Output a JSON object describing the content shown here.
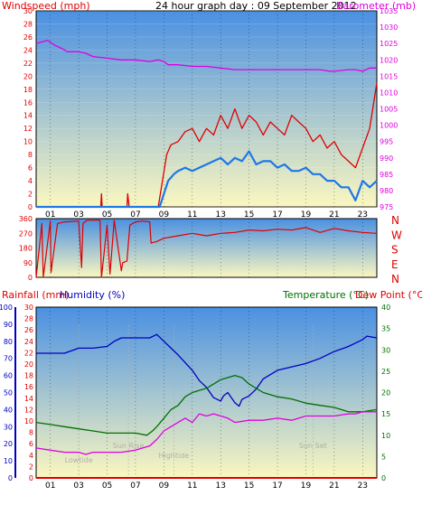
{
  "colors": {
    "red": "#e00000",
    "magenta": "#e000e0",
    "blue": "#1e78e6",
    "navy": "#0000c0",
    "green": "#007000",
    "pink": "#e060e0",
    "annot": "#b0b0a8",
    "panel_top": "#4a90e2",
    "panel_bottom": "#fbf7c0"
  },
  "chart_data": [
    {
      "type": "line",
      "title": "24 hour graph day : 09 September 2012",
      "left_label": "Windspeed (mph)",
      "right_label": "Barometer (mb)",
      "x_ticks": [
        "01",
        "03",
        "05",
        "07",
        "09",
        "11",
        "13",
        "15",
        "17",
        "19",
        "21",
        "23"
      ],
      "xlim": [
        0,
        24
      ],
      "y_left": {
        "ticks": [
          "0",
          "2",
          "4",
          "6",
          "8",
          "10",
          "12",
          "14",
          "16",
          "18",
          "20",
          "22",
          "24",
          "26",
          "28",
          "30"
        ],
        "range": [
          0,
          30
        ]
      },
      "y_right": {
        "ticks": [
          "975",
          "980",
          "985",
          "990",
          "995",
          "1000",
          "1005",
          "1010",
          "1015",
          "1020",
          "1025",
          "1030",
          "1035"
        ],
        "range": [
          975,
          1035
        ]
      },
      "series": [
        {
          "role": "gust",
          "axis": "left",
          "color": "red",
          "x": [
            0,
            4.55,
            4.6,
            4.65,
            4.7,
            6.4,
            6.45,
            6.5,
            6.55,
            8.6,
            8.9,
            9.2,
            9.5,
            10,
            10.5,
            11,
            11.5,
            12,
            12.5,
            13,
            13.5,
            14,
            14.5,
            15,
            15.5,
            16,
            16.5,
            17,
            17.5,
            18,
            18.5,
            19,
            19.5,
            20,
            20.5,
            21,
            21.5,
            22,
            22.5,
            23,
            23.5,
            24
          ],
          "y": [
            0,
            0,
            2,
            0,
            0,
            0,
            2,
            1,
            0,
            0,
            4,
            8,
            9.5,
            10,
            11.5,
            12,
            10,
            12,
            11,
            14,
            12,
            15,
            12,
            14,
            13,
            11,
            13,
            12,
            11,
            14,
            13,
            12,
            10,
            11,
            9,
            10,
            8,
            7,
            6,
            9,
            12,
            19
          ]
        },
        {
          "role": "average",
          "axis": "left",
          "color": "blue",
          "x": [
            0,
            8.7,
            9,
            9.3,
            9.7,
            10,
            10.5,
            11,
            11.5,
            12,
            12.5,
            13,
            13.5,
            14,
            14.5,
            15,
            15.5,
            16,
            16.5,
            17,
            17.5,
            18,
            18.5,
            19,
            19.5,
            20,
            20.5,
            21,
            21.5,
            22,
            22.5,
            23,
            23.5,
            24
          ],
          "y": [
            0,
            0,
            2,
            4,
            5,
            5.5,
            6,
            5.5,
            6,
            6.5,
            7,
            7.5,
            6.5,
            7.5,
            7,
            8.5,
            6.5,
            7,
            7,
            6,
            6.5,
            5.5,
            5.5,
            6,
            5,
            5,
            4,
            4,
            3,
            3,
            1,
            4,
            3,
            4
          ]
        },
        {
          "role": "pressure",
          "axis": "right",
          "color": "magenta",
          "x": [
            0,
            0.8,
            1.3,
            1.8,
            2.2,
            3,
            3.5,
            4,
            5,
            6,
            7,
            8,
            8.6,
            9,
            9.3,
            10,
            11,
            12,
            13,
            14,
            15,
            16,
            17,
            18,
            19,
            20,
            20.7,
            21,
            22,
            22.5,
            23,
            23.5,
            24
          ],
          "y": [
            1025,
            1026,
            1024.5,
            1023.5,
            1022.5,
            1022.5,
            1022,
            1021,
            1020.5,
            1020,
            1020,
            1019.5,
            1020,
            1019.5,
            1018.5,
            1018.5,
            1018,
            1018,
            1017.5,
            1017,
            1017,
            1017,
            1017,
            1017,
            1017,
            1017,
            1016.5,
            1016.5,
            1017,
            1017,
            1016.5,
            1017.5,
            1017.5
          ]
        }
      ]
    },
    {
      "type": "line",
      "direction_labels": [
        "N",
        "W",
        "S",
        "E",
        "N"
      ],
      "y_left": {
        "ticks": [
          "0",
          "90",
          "180",
          "270",
          "360"
        ],
        "range": [
          0,
          360
        ]
      },
      "xlim": [
        0,
        24
      ],
      "series": [
        {
          "role": "direction",
          "color": "red",
          "x": [
            0,
            0.4,
            0.5,
            1,
            1.05,
            1.5,
            2,
            3,
            3.2,
            3.3,
            3.6,
            4.5,
            4.6,
            5,
            5.2,
            5.5,
            6,
            6.1,
            6.4,
            6.6,
            7,
            7.5,
            8,
            8.1,
            8.5,
            9,
            10,
            11,
            12,
            13,
            14,
            15,
            16,
            17,
            18,
            19,
            20,
            21,
            22,
            23,
            24
          ],
          "y": [
            0,
            330,
            0,
            345,
            30,
            330,
            340,
            345,
            60,
            330,
            350,
            350,
            0,
            320,
            20,
            350,
            40,
            90,
            100,
            320,
            340,
            345,
            340,
            210,
            220,
            240,
            255,
            270,
            255,
            270,
            275,
            290,
            285,
            295,
            290,
            305,
            275,
            300,
            285,
            275,
            270
          ]
        }
      ]
    },
    {
      "type": "line",
      "left_label_1": "Rainfall (mm)",
      "left_label_2": "Humidity (%)",
      "right_label_1": "Temperature (°C)",
      "right_label_2": "Dew Point (°C)",
      "x_ticks": [
        "01",
        "03",
        "05",
        "07",
        "09",
        "11",
        "13",
        "15",
        "17",
        "19",
        "21",
        "23"
      ],
      "xlim": [
        0,
        24
      ],
      "y_humidity": {
        "ticks": [
          "0",
          "10",
          "20",
          "30",
          "40",
          "50",
          "60",
          "70",
          "80",
          "90",
          "100"
        ],
        "range": [
          0,
          100
        ]
      },
      "y_rain": {
        "ticks": [
          "0",
          "2",
          "4",
          "6",
          "8",
          "10",
          "12",
          "14",
          "16",
          "18",
          "20",
          "22",
          "24",
          "26",
          "28",
          "30"
        ],
        "range": [
          0,
          30
        ]
      },
      "y_temp": {
        "ticks": [
          "0",
          "5",
          "10",
          "15",
          "20",
          "25",
          "30",
          "35",
          "40"
        ],
        "range": [
          0,
          40
        ]
      },
      "annotations": [
        {
          "text": "Lowtide",
          "x": 3
        },
        {
          "text": "Sun Rise",
          "x": 6.5
        },
        {
          "text": "Hightide",
          "x": 9.7
        },
        {
          "text": "Sun Set",
          "x": 19.5
        }
      ],
      "series": [
        {
          "role": "humidity",
          "color": "navy",
          "x": [
            0,
            1,
            2,
            3,
            3.2,
            4,
            5,
            5.5,
            6,
            6.3,
            7,
            8,
            8.5,
            9,
            10,
            11,
            11.5,
            12,
            12.5,
            13,
            13.2,
            13.5,
            14,
            14.3,
            14.5,
            15,
            15.5,
            16,
            17,
            18,
            19,
            20,
            21,
            22,
            23,
            23.3,
            24
          ],
          "y": [
            73,
            73,
            73,
            76,
            76,
            76,
            77,
            80,
            82,
            82,
            82,
            82,
            84,
            80,
            72,
            63,
            57,
            53,
            47,
            45,
            48,
            50,
            44,
            42,
            46,
            48,
            52,
            58,
            63,
            65,
            67,
            70,
            74,
            77,
            81,
            83,
            82
          ]
        },
        {
          "role": "rainfall",
          "color": "red",
          "x": [
            0,
            24
          ],
          "y": [
            0,
            0
          ]
        },
        {
          "role": "temperature",
          "color": "green",
          "x": [
            0,
            1,
            2,
            3,
            4,
            5,
            6,
            7,
            7.8,
            8.2,
            8.5,
            9,
            9.5,
            10,
            10.5,
            11,
            12,
            12.5,
            13,
            13.5,
            14,
            14.5,
            15,
            16,
            17,
            18,
            19,
            20,
            21,
            22,
            23,
            24
          ],
          "y": [
            13,
            12.5,
            12,
            11.5,
            11,
            10.5,
            10.5,
            10.5,
            10,
            11,
            12,
            14,
            16,
            17,
            19,
            20,
            21,
            22,
            23,
            23.5,
            24,
            23.5,
            22,
            20,
            19,
            18.5,
            17.5,
            17,
            16.5,
            15.5,
            15.5,
            16
          ]
        },
        {
          "role": "dewpoint",
          "color": "magenta",
          "x": [
            0,
            1,
            2,
            3,
            3.5,
            4,
            5,
            6,
            7,
            7.5,
            8,
            8.5,
            9,
            9.5,
            10,
            10.5,
            11,
            11.5,
            12,
            12.5,
            13,
            13.5,
            14,
            15,
            16,
            17,
            18,
            19,
            20,
            21,
            22,
            22.5,
            23,
            24
          ],
          "y": [
            7,
            6.5,
            6,
            6,
            5.5,
            6,
            6,
            6,
            6.5,
            7,
            7.5,
            9,
            11,
            12,
            13,
            14,
            13,
            15,
            14.5,
            15,
            14.5,
            14,
            13,
            13.5,
            13.5,
            14,
            13.5,
            14.5,
            14.5,
            14.5,
            15,
            15,
            15.5,
            15.5
          ]
        }
      ]
    }
  ]
}
